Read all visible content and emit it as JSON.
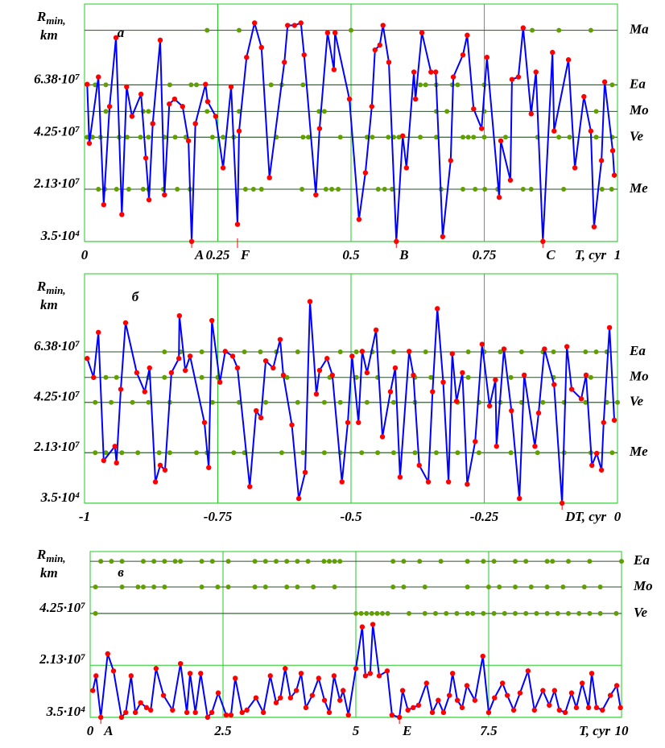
{
  "chart_data": [
    {
      "type": "line",
      "panel_label": "a",
      "ylabel": "R",
      "ylabel_sub": "min,",
      "ylabel_unit": "km",
      "xlabel": "T, cyr",
      "xlim": [
        0,
        1
      ],
      "xticks": [
        0,
        0.25,
        0.5,
        0.75,
        1
      ],
      "ylim": [
        0,
        96700000.0
      ],
      "yticks": [
        {
          "value": 35000.0,
          "label": "3.5·10⁴"
        },
        {
          "value": 21300000.0,
          "label": "2.13·10⁷"
        },
        {
          "value": 42500000.0,
          "label": "4.25·10⁷"
        },
        {
          "value": 63800000.0,
          "label": "6.38·10⁷"
        }
      ],
      "grid": true,
      "grid_color": "#22cc22",
      "line_color": "#0000ff",
      "marker_color": "#ff0000",
      "ref_color": "#2f4f2f",
      "dot_color": "#5f9f00",
      "x": [
        0.005,
        0.009,
        0.026,
        0.036,
        0.047,
        0.059,
        0.07,
        0.079,
        0.089,
        0.106,
        0.115,
        0.121,
        0.128,
        0.142,
        0.15,
        0.159,
        0.169,
        0.184,
        0.195,
        0.201,
        0.208,
        0.227,
        0.231,
        0.246,
        0.26,
        0.275,
        0.287,
        0.29,
        0.304,
        0.319,
        0.332,
        0.347,
        0.375,
        0.381,
        0.394,
        0.406,
        0.412,
        0.434,
        0.441,
        0.456,
        0.468,
        0.47,
        0.497,
        0.515,
        0.527,
        0.539,
        0.545,
        0.554,
        0.56,
        0.571,
        0.585,
        0.597,
        0.604,
        0.618,
        0.621,
        0.633,
        0.65,
        0.659,
        0.672,
        0.687,
        0.692,
        0.71,
        0.718,
        0.73,
        0.745,
        0.755,
        0.778,
        0.781,
        0.799,
        0.802,
        0.814,
        0.823,
        0.838,
        0.847,
        0.86,
        0.878,
        0.881,
        0.908,
        0.92,
        0.937,
        0.95,
        0.956,
        0.97,
        0.976,
        0.991,
        0.994
      ],
      "values": [
        64000000.0,
        40000000.0,
        67000000.0,
        15000000.0,
        55000000.0,
        83000000.0,
        11000000.0,
        63000000.0,
        51000000.0,
        60000000.0,
        34000000.0,
        17000000.0,
        48000000.0,
        82000000.0,
        19000000.0,
        56000000.0,
        58000000.0,
        55000000.0,
        41000000.0,
        35000.0,
        48000000.0,
        64000000.0,
        57000000.0,
        51000000.0,
        30000000.0,
        63000000.0,
        7000000.0,
        45000000.0,
        75000000.0,
        89000000.0,
        79000000.0,
        26000000.0,
        73000000.0,
        88000000.0,
        88000000.0,
        89000000.0,
        76000000.0,
        19000000.0,
        46000000.0,
        85000000.0,
        70000000.0,
        85000000.0,
        58000000.0,
        9000000.0,
        28000000.0,
        55000000.0,
        78000000.0,
        80000000.0,
        88000000.0,
        73000000.0,
        35000.0,
        43000000.0,
        30000000.0,
        69000000.0,
        58000000.0,
        85000000.0,
        69000000.0,
        69000000.0,
        2000000.0,
        33000000.0,
        67000000.0,
        76000000.0,
        84000000.0,
        54000000.0,
        46000000.0,
        75000000.0,
        18000000.0,
        41000000.0,
        25000000.0,
        66000000.0,
        67000000.0,
        87000000.0,
        52000000.0,
        69000000.0,
        35000.0,
        77000000.0,
        45000000.0,
        74000000.0,
        30000000.0,
        59000000.0,
        45000000.0,
        6000000.0,
        33000000.0,
        65000000.0,
        37000000.0,
        27000000.0
      ],
      "reference_lines": [
        {
          "name": "Ma",
          "value": 86000000.0,
          "dots": [
            0.23,
            0.29,
            0.5,
            0.84,
            0.89,
            0.95
          ]
        },
        {
          "name": "Ea",
          "value": 63800000.0,
          "dots": [
            0.02,
            0.04,
            0.16,
            0.2,
            0.21,
            0.35,
            0.37,
            0.41,
            0.63,
            0.64,
            0.66,
            0.69,
            0.7,
            0.75,
            0.99
          ]
        },
        {
          "name": "Mo",
          "value": 53000000.0,
          "dots": [
            0.04,
            0.11,
            0.12,
            0.23,
            0.29,
            0.44,
            0.45,
            0.66,
            0.68,
            0.75,
            0.96
          ]
        },
        {
          "name": "Ve",
          "value": 42500000.0,
          "dots": [
            0.005,
            0.015,
            0.03,
            0.065,
            0.08,
            0.105,
            0.12,
            0.15,
            0.17,
            0.19,
            0.24,
            0.26,
            0.28,
            0.36,
            0.41,
            0.42,
            0.48,
            0.53,
            0.54,
            0.57,
            0.58,
            0.59,
            0.63,
            0.66,
            0.71,
            0.72,
            0.73,
            0.75,
            0.79,
            0.85,
            0.89,
            0.91,
            0.96,
            0.99
          ]
        },
        {
          "name": "Me",
          "value": 21300000.0,
          "dots": [
            0.026,
            0.038,
            0.06,
            0.083,
            0.11,
            0.12,
            0.148,
            0.174,
            0.198,
            0.302,
            0.317,
            0.332,
            0.408,
            0.453,
            0.464,
            0.476,
            0.551,
            0.563,
            0.577,
            0.669,
            0.71,
            0.733,
            0.751,
            0.775,
            0.823,
            0.838,
            0.899,
            0.971,
            0.989
          ]
        }
      ],
      "annotations": [
        {
          "label": "A",
          "x": 0.201
        },
        {
          "label": "F",
          "x": 0.287
        },
        {
          "label": "B",
          "x": 0.585
        },
        {
          "label": "C",
          "x": 0.86
        }
      ]
    },
    {
      "type": "line",
      "panel_label": "б",
      "ylabel": "R",
      "ylabel_sub": "min,",
      "ylabel_unit": "km",
      "xlabel": "T, cyr",
      "xlim": [
        -1,
        0
      ],
      "xticks": [
        -1,
        -0.75,
        -0.5,
        -0.25,
        0
      ],
      "ylim": [
        0,
        96700000.0
      ],
      "yticks": [
        {
          "value": 35000.0,
          "label": "3.5·10⁴"
        },
        {
          "value": 21300000.0,
          "label": "2.13·10⁷"
        },
        {
          "value": 42500000.0,
          "label": "4.25·10⁷"
        },
        {
          "value": 63800000.0,
          "label": "6.38·10⁷"
        }
      ],
      "grid": true,
      "grid_color": "#22cc22",
      "line_color": "#0000ff",
      "marker_color": "#ff0000",
      "ref_color": "#2f4f2f",
      "dot_color": "#5f9f00",
      "x": [
        -0.995,
        -0.983,
        -0.974,
        -0.964,
        -0.943,
        -0.94,
        -0.932,
        -0.923,
        -0.902,
        -0.887,
        -0.878,
        -0.867,
        -0.858,
        -0.849,
        -0.837,
        -0.823,
        -0.822,
        -0.811,
        -0.802,
        -0.775,
        -0.767,
        -0.761,
        -0.746,
        -0.736,
        -0.722,
        -0.713,
        -0.69,
        -0.678,
        -0.669,
        -0.66,
        -0.646,
        -0.633,
        -0.627,
        -0.611,
        -0.598,
        -0.586,
        -0.577,
        -0.565,
        -0.559,
        -0.545,
        -0.535,
        -0.517,
        -0.506,
        -0.498,
        -0.486,
        -0.479,
        -0.47,
        -0.453,
        -0.441,
        -0.426,
        -0.417,
        -0.408,
        -0.391,
        -0.383,
        -0.372,
        -0.355,
        -0.347,
        -0.338,
        -0.327,
        -0.317,
        -0.31,
        -0.302,
        -0.291,
        -0.282,
        -0.267,
        -0.254,
        -0.24,
        -0.229,
        -0.227,
        -0.213,
        -0.199,
        -0.184,
        -0.175,
        -0.155,
        -0.148,
        -0.137,
        -0.119,
        -0.104,
        -0.095,
        -0.086,
        -0.068,
        -0.059,
        -0.048,
        -0.039,
        -0.03,
        -0.026,
        -0.015,
        -0.006
      ],
      "values": [
        61000000.0,
        53000000.0,
        72000000.0,
        18000000.0,
        24000000.0,
        17000000.0,
        48000000.0,
        76000000.0,
        55000000.0,
        47000000.0,
        57000000.0,
        9000000.0,
        16000000.0,
        14000000.0,
        55000000.0,
        61000000.0,
        79000000.0,
        56000000.0,
        62000000.0,
        34000000.0,
        15000000.0,
        77000000.0,
        51000000.0,
        64000000.0,
        62000000.0,
        57000000.0,
        7000000.0,
        39000000.0,
        36000000.0,
        60000000.0,
        57000000.0,
        69000000.0,
        54000000.0,
        33000000.0,
        2000000.0,
        13000000.0,
        85000000.0,
        46000000.0,
        56000000.0,
        61000000.0,
        54000000.0,
        9000000.0,
        34000000.0,
        62000000.0,
        34000000.0,
        64000000.0,
        55000000.0,
        73000000.0,
        28000000.0,
        47000000.0,
        57000000.0,
        11000000.0,
        64000000.0,
        54000000.0,
        16000000.0,
        9000000.0,
        47000000.0,
        82000000.0,
        51000000.0,
        9000000.0,
        63000000.0,
        43000000.0,
        55000000.0,
        8000000.0,
        26000000.0,
        67000000.0,
        41000000.0,
        52000000.0,
        24000000.0,
        65000000.0,
        39000000.0,
        2000000.0,
        54000000.0,
        24000000.0,
        38000000.0,
        65000000.0,
        50000000.0,
        35000.0,
        66000000.0,
        48000000.0,
        44000000.0,
        54000000.0,
        16000000.0,
        21000000.0,
        14000000.0,
        34000000.0,
        74000000.0,
        35000000.0
      ],
      "reference_lines": [
        {
          "name": "Ea",
          "value": 63800000.0,
          "dots": [
            -0.85,
            -0.82,
            -0.78,
            -0.7,
            -0.67,
            -0.64,
            -0.6,
            -0.52,
            -0.49,
            -0.46,
            -0.42,
            -0.36,
            -0.28,
            -0.25,
            -0.22,
            -0.18,
            -0.14,
            -0.12,
            -0.06,
            -0.04,
            -0.02
          ]
        },
        {
          "name": "Mo",
          "value": 53000000.0,
          "dots": [
            -0.96,
            -0.94,
            -0.88,
            -0.85,
            -0.78,
            -0.75,
            -0.62,
            -0.54,
            -0.49,
            -0.45,
            -0.38,
            -0.35,
            -0.28,
            -0.2,
            -0.12,
            -0.05
          ]
        },
        {
          "name": "Ve",
          "value": 42500000.0,
          "dots": [
            -0.98,
            -0.95,
            -0.91,
            -0.88,
            -0.84,
            -0.76,
            -0.71,
            -0.66,
            -0.6,
            -0.55,
            -0.52,
            -0.47,
            -0.42,
            -0.38,
            -0.3,
            -0.26,
            -0.22,
            -0.18,
            -0.14,
            -0.1,
            -0.06,
            -0.02,
            0
          ]
        },
        {
          "name": "Me",
          "value": 21300000.0,
          "dots": [
            -0.98,
            -0.96,
            -0.93,
            -0.9,
            -0.86,
            -0.84,
            -0.79,
            -0.77,
            -0.72,
            -0.7,
            -0.63,
            -0.59,
            -0.55,
            -0.52,
            -0.48,
            -0.45,
            -0.42,
            -0.38,
            -0.34,
            -0.3,
            -0.26,
            -0.2,
            -0.15,
            -0.1,
            -0.05,
            -0.01
          ]
        }
      ],
      "annotations": [
        {
          "label": "D",
          "x": -0.104
        }
      ]
    },
    {
      "type": "line",
      "panel_label": "в",
      "ylabel": "R",
      "ylabel_sub": "min,",
      "ylabel_unit": "km",
      "xlabel": "T, cyr",
      "xlim": [
        0,
        10
      ],
      "xticks": [
        0,
        2.5,
        5,
        7.5,
        10
      ],
      "ylim": [
        0,
        67800000.0
      ],
      "yticks": [
        {
          "value": 35000.0,
          "label": "3.5·10⁴"
        },
        {
          "value": 21300000.0,
          "label": "2.13·10⁷"
        },
        {
          "value": 42500000.0,
          "label": "4.25·10⁷"
        }
      ],
      "grid": true,
      "grid_color": "#22cc22",
      "line_color": "#0000ff",
      "marker_color": "#ff0000",
      "ref_color": "#2f4f2f",
      "dot_color": "#5f9f00",
      "x": [
        0.05,
        0.11,
        0.2,
        0.33,
        0.44,
        0.59,
        0.67,
        0.77,
        0.85,
        0.95,
        1.06,
        1.14,
        1.24,
        1.38,
        1.55,
        1.7,
        1.82,
        1.88,
        1.98,
        2.08,
        2.21,
        2.29,
        2.41,
        2.56,
        2.65,
        2.73,
        2.86,
        2.95,
        3.12,
        3.26,
        3.39,
        3.5,
        3.58,
        3.67,
        3.77,
        3.88,
        3.97,
        4.06,
        4.18,
        4.3,
        4.41,
        4.5,
        4.59,
        4.7,
        4.76,
        4.86,
        5.0,
        5.12,
        5.18,
        5.27,
        5.32,
        5.44,
        5.59,
        5.68,
        5.82,
        5.88,
        5.98,
        6.08,
        6.18,
        6.33,
        6.44,
        6.55,
        6.65,
        6.76,
        6.82,
        6.91,
        7.0,
        7.09,
        7.24,
        7.39,
        7.5,
        7.61,
        7.76,
        7.85,
        7.97,
        8.09,
        8.24,
        8.36,
        8.52,
        8.64,
        8.74,
        8.83,
        8.94,
        9.06,
        9.15,
        9.26,
        9.38,
        9.44,
        9.53,
        9.64,
        9.79,
        9.91,
        9.98
      ],
      "values": [
        11000000.0,
        17000000.0,
        35000.0,
        26000000.0,
        19000000.0,
        35000.0,
        2000000.0,
        17000000.0,
        2000000.0,
        6000000.0,
        4000000.0,
        3000000.0,
        20000000.0,
        9000000.0,
        3000000.0,
        22000000.0,
        2000000.0,
        18000000.0,
        2000000.0,
        18000000.0,
        35000.0,
        2000000.0,
        10000000.0,
        1000000.0,
        1000000.0,
        16000000.0,
        2000000.0,
        3000000.0,
        8000000.0,
        2000000.0,
        17000000.0,
        6000000.0,
        8000000.0,
        20000000.0,
        8000000.0,
        11000000.0,
        18000000.0,
        4000000.0,
        9000000.0,
        16000000.0,
        7000000.0,
        2000000.0,
        17000000.0,
        7000000.0,
        11000000.0,
        1000000.0,
        20000000.0,
        37000000.0,
        17000000.0,
        18000000.0,
        38000000.0,
        17000000.0,
        19000000.0,
        1000000.0,
        35000.0,
        11000000.0,
        3000000.0,
        4000000.0,
        5000000.0,
        14000000.0,
        2000000.0,
        7000000.0,
        2000000.0,
        9000000.0,
        18000000.0,
        7000000.0,
        4000000.0,
        13000000.0,
        7000000.0,
        25000000.0,
        2000000.0,
        8000000.0,
        14000000.0,
        9000000.0,
        3000000.0,
        10000000.0,
        19000000.0,
        3000000.0,
        11000000.0,
        5000000.0,
        11000000.0,
        3000000.0,
        2000000.0,
        10000000.0,
        4000000.0,
        14000000.0,
        4000000.0,
        18000000.0,
        4000000.0,
        3000000.0,
        9000000.0,
        13000000.0,
        4000000.0
      ],
      "reference_lines": [
        {
          "name": "Ea",
          "value": 63800000.0,
          "dots": [
            0.2,
            0.4,
            0.6,
            1.0,
            1.2,
            1.4,
            1.6,
            1.7,
            2.1,
            2.3,
            2.6,
            3.1,
            3.3,
            3.5,
            3.7,
            3.9,
            4.1,
            4.4,
            4.5,
            4.6,
            4.7,
            5.7,
            5.9,
            6.2,
            6.6,
            7.1,
            7.4,
            7.6,
            8.0,
            8.2,
            8.6,
            8.7,
            9.0,
            9.4,
            10.0
          ]
        },
        {
          "name": "Mo",
          "value": 53300000.0,
          "dots": [
            0.1,
            0.6,
            0.9,
            1.0,
            1.2,
            1.4,
            2.1,
            2.4,
            2.6,
            3.1,
            3.3,
            3.7,
            3.9,
            4.2,
            4.6,
            5.7,
            5.9,
            6.3,
            7.1,
            7.5,
            7.7,
            8.0,
            8.3,
            8.6,
            8.9,
            9.3,
            9.6
          ]
        },
        {
          "name": "Ve",
          "value": 42500000.0,
          "dots": [
            0.1,
            5.0,
            5.1,
            5.2,
            5.3,
            5.4,
            5.5,
            5.6,
            6.0,
            6.3,
            6.5,
            6.7,
            6.9,
            7.1,
            7.2,
            7.4,
            7.6,
            7.8,
            8.0,
            8.2,
            8.4,
            8.6,
            8.8,
            9.0,
            9.2,
            9.4,
            9.6,
            9.9
          ]
        }
      ],
      "annotations": [
        {
          "label": "A",
          "x": 0.2
        },
        {
          "label": "E",
          "x": 5.82
        }
      ]
    }
  ]
}
